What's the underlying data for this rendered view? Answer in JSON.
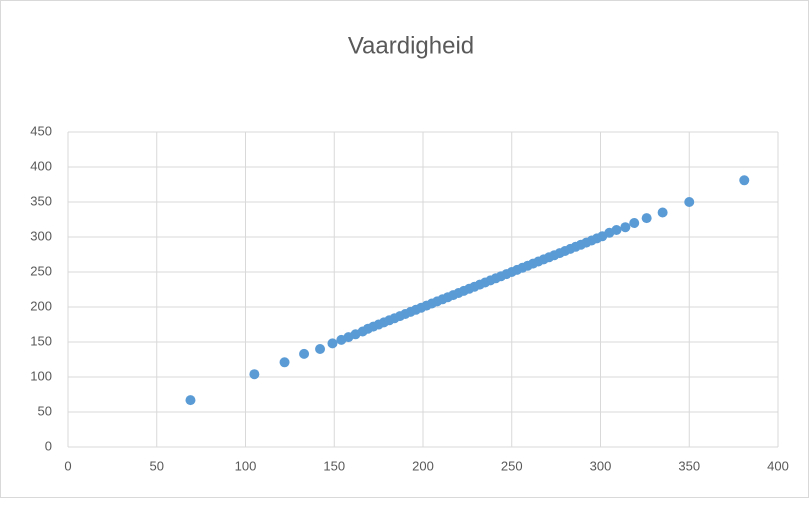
{
  "chart_data": {
    "type": "scatter",
    "title": "Vaardigheid",
    "series": [
      {
        "name": null,
        "color": "#5b9bd5",
        "x": [
          69,
          105,
          122,
          133,
          142,
          149,
          154,
          158,
          162,
          166,
          169,
          172,
          175,
          178,
          181,
          184,
          187,
          190,
          193,
          196,
          199,
          202,
          205,
          208,
          211,
          214,
          217,
          220,
          223,
          226,
          229,
          232,
          235,
          238,
          241,
          244,
          247,
          250,
          253,
          256,
          259,
          262,
          265,
          268,
          271,
          274,
          277,
          280,
          283,
          286,
          289,
          292,
          295,
          298,
          301,
          305,
          309,
          314,
          319,
          326,
          335,
          350,
          381
        ],
        "values": [
          67,
          104,
          121,
          133,
          140,
          148,
          153,
          157,
          161,
          165,
          169,
          172,
          175,
          178,
          181,
          184,
          187,
          190,
          193,
          196,
          199,
          202,
          205,
          208,
          211,
          214,
          217,
          220,
          223,
          226,
          229,
          232,
          235,
          238,
          241,
          244,
          247,
          250,
          253,
          256,
          259,
          262,
          265,
          268,
          271,
          274,
          277,
          280,
          283,
          286,
          289,
          292,
          295,
          298,
          301,
          306,
          310,
          314,
          320,
          327,
          335,
          350,
          381
        ]
      }
    ],
    "xlim": [
      0,
      400
    ],
    "xticks": [
      0,
      50,
      100,
      150,
      200,
      250,
      300,
      350,
      400
    ],
    "ylim": [
      0,
      450
    ],
    "yticks": [
      0,
      50,
      100,
      150,
      200,
      250,
      300,
      350,
      400,
      450
    ],
    "grid": true
  }
}
